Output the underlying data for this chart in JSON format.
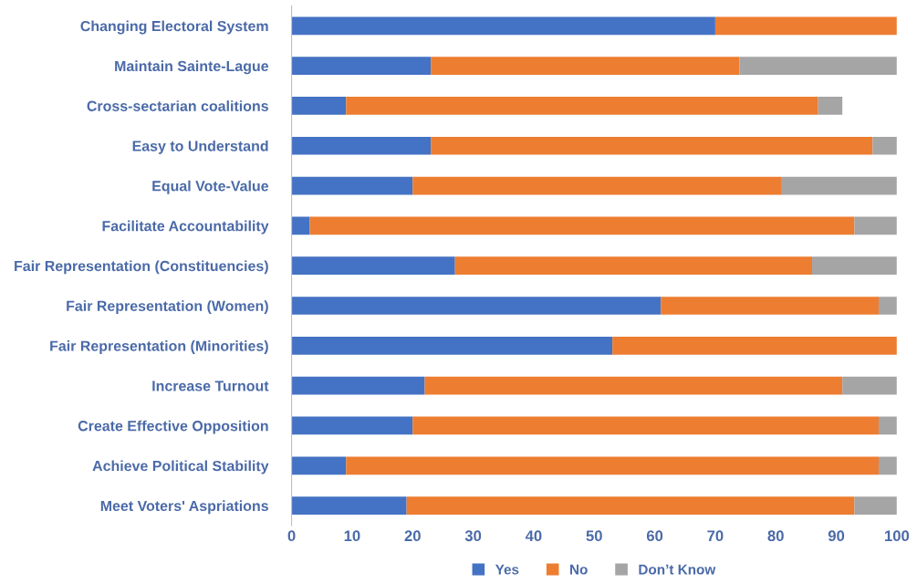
{
  "chart_data": {
    "type": "bar",
    "orientation": "horizontal",
    "stacked": true,
    "categories": [
      "Changing Electoral System",
      "Maintain Sainte-Lague",
      "Cross-sectarian coalitions",
      "Easy to Understand",
      "Equal Vote-Value",
      "Facilitate Accountability",
      "Fair Representation (Constituencies)",
      "Fair Representation (Women)",
      "Fair Representation (Minorities)",
      "Increase Turnout",
      "Create Effective Opposition",
      "Achieve Political Stability",
      "Meet Voters' Aspriations"
    ],
    "series": [
      {
        "name": "Yes",
        "color": "#4472c4",
        "values": [
          70,
          23,
          9,
          23,
          20,
          3,
          27,
          61,
          53,
          22,
          20,
          9,
          19
        ]
      },
      {
        "name": "No",
        "color": "#ed7d31",
        "values": [
          30,
          51,
          78,
          73,
          61,
          90,
          59,
          36,
          47,
          69,
          77,
          88,
          74
        ]
      },
      {
        "name": "Don’t Know",
        "color": "#a5a5a5",
        "values": [
          0,
          26,
          4,
          4,
          19,
          7,
          14,
          3,
          0,
          9,
          3,
          3,
          7
        ]
      }
    ],
    "xlim": [
      0,
      100
    ],
    "xticks": [
      0,
      10,
      20,
      30,
      40,
      50,
      60,
      70,
      80,
      90,
      100
    ],
    "grid": false,
    "legend": "bottom"
  }
}
